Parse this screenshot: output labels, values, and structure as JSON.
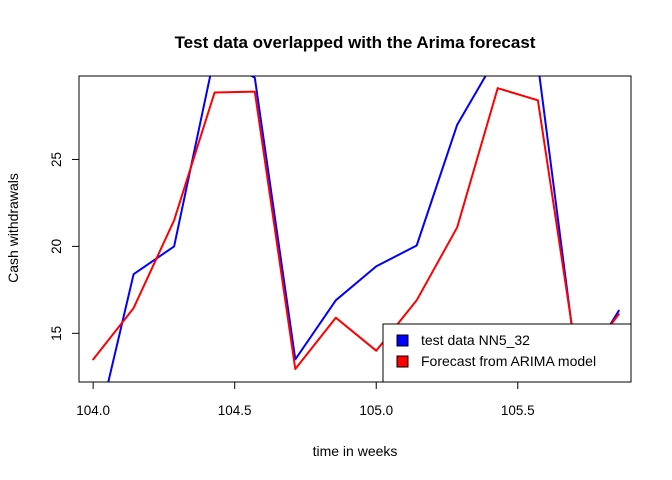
{
  "chart_data": {
    "type": "line",
    "title": "Test data overlapped with the Arima forecast",
    "xlabel": "time in weeks",
    "ylabel": "Cash withdrawals",
    "xlim": [
      103.95,
      105.9
    ],
    "ylim": [
      12.2,
      29.8
    ],
    "x_ticks": [
      104.0,
      104.5,
      105.0,
      105.5
    ],
    "x_tick_labels": [
      "104.0",
      "104.5",
      "105.0",
      "105.5"
    ],
    "y_ticks": [
      15,
      20,
      25
    ],
    "y_tick_labels": [
      "15",
      "20",
      "25"
    ],
    "legend_position": "bottom-right",
    "grid": false,
    "series": [
      {
        "name": "test data NN5_32",
        "color": "#0000ff",
        "x": [
          104.0,
          104.143,
          104.286,
          104.429,
          104.571,
          104.714,
          104.857,
          105.0,
          105.143,
          105.286,
          105.429,
          105.571,
          105.714,
          105.857
        ],
        "y": [
          8.5,
          18.4,
          20.0,
          31.0,
          29.7,
          13.5,
          16.9,
          18.85,
          20.05,
          27.0,
          31.0,
          30.5,
          12.5,
          16.3
        ]
      },
      {
        "name": "Forecast from ARIMA model",
        "color": "#ff0000",
        "x": [
          104.0,
          104.143,
          104.286,
          104.429,
          104.571,
          104.714,
          104.857,
          105.0,
          105.143,
          105.286,
          105.429,
          105.571,
          105.714,
          105.857
        ],
        "y": [
          13.5,
          16.45,
          21.5,
          28.85,
          28.9,
          12.95,
          15.9,
          14.0,
          16.9,
          21.1,
          29.1,
          28.4,
          13.0,
          16.1
        ]
      }
    ]
  }
}
